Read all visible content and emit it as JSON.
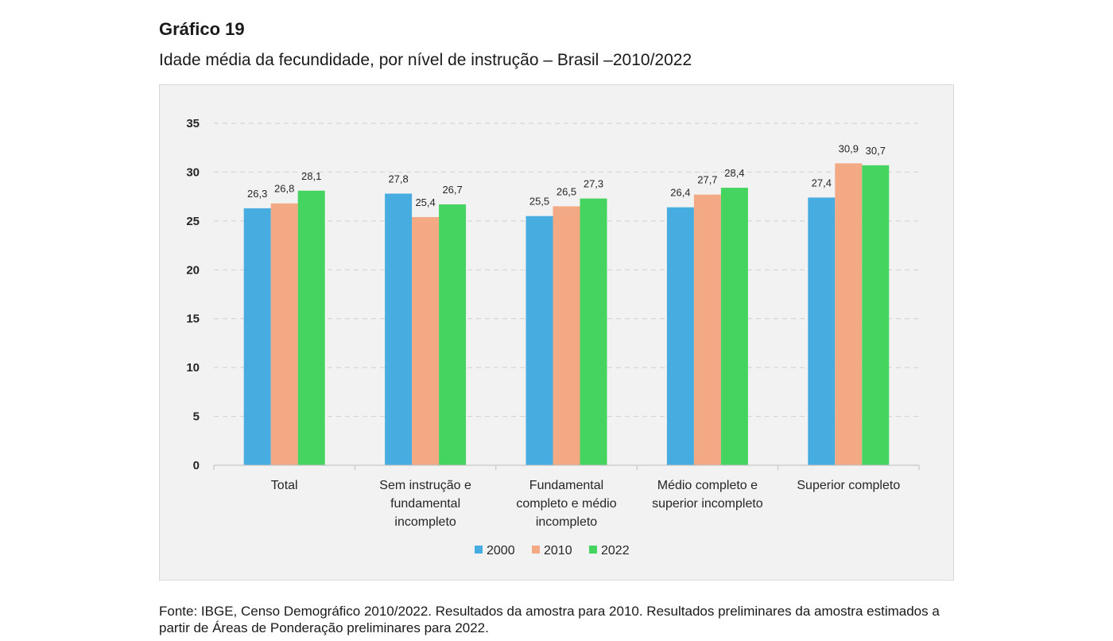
{
  "figure": {
    "title": "Gráfico 19",
    "subtitle": "Idade média da fecundidade, por nível de instrução – Brasil –2010/2022",
    "source": "Fonte: IBGE, Censo Demográfico 2010/2022. Resultados da amostra para 2010. Resultados preliminares da amostra estimados a partir de Áreas de Ponderação preliminares para 2022."
  },
  "chart_data": {
    "type": "bar",
    "categories": [
      [
        "Total"
      ],
      [
        "Sem instrução e",
        "fundamental",
        "incompleto"
      ],
      [
        "Fundamental",
        "completo e médio",
        "incompleto"
      ],
      [
        "Médio completo e",
        "superior incompleto"
      ],
      [
        "Superior completo"
      ]
    ],
    "series": [
      {
        "name": "2000",
        "color": "#47ade0",
        "values": [
          26.3,
          27.8,
          25.5,
          26.4,
          27.4
        ]
      },
      {
        "name": "2010",
        "color": "#f2a984",
        "values": [
          26.8,
          25.4,
          26.5,
          27.7,
          30.9
        ]
      },
      {
        "name": "2022",
        "color": "#45d45f",
        "values": [
          28.1,
          26.7,
          27.3,
          28.4,
          30.7
        ]
      }
    ],
    "value_labels": [
      [
        "26,3",
        "27,8",
        "25,5",
        "26,4",
        "27,4"
      ],
      [
        "26,8",
        "25,4",
        "26,5",
        "27,7",
        "30,9"
      ],
      [
        "28,1",
        "26,7",
        "27,3",
        "28,4",
        "30,7"
      ]
    ],
    "yticks": [
      0,
      5,
      10,
      15,
      20,
      25,
      30,
      35
    ],
    "ylim": [
      0,
      35
    ],
    "grid": true,
    "legend_position": "bottom",
    "xlabel": "",
    "ylabel": ""
  }
}
